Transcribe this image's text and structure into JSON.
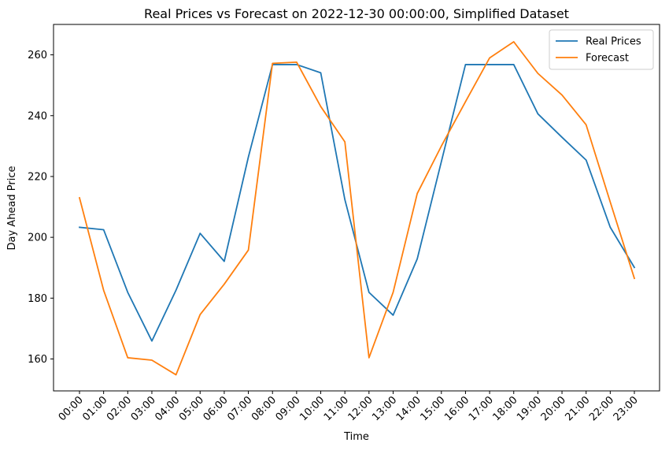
{
  "chart_data": {
    "type": "line",
    "title": "Real Prices vs Forecast on 2022-12-30 00:00:00, Simplified Dataset",
    "xlabel": "Time",
    "ylabel": "Day Ahead Price",
    "categories": [
      "00:00",
      "01:00",
      "02:00",
      "03:00",
      "04:00",
      "05:00",
      "06:00",
      "07:00",
      "08:00",
      "09:00",
      "10:00",
      "11:00",
      "12:00",
      "13:00",
      "14:00",
      "15:00",
      "16:00",
      "17:00",
      "18:00",
      "19:00",
      "20:00",
      "21:00",
      "22:00",
      "23:00"
    ],
    "ylim": [
      149.5,
      270
    ],
    "yticks": [
      160,
      180,
      200,
      220,
      240,
      260
    ],
    "grid": false,
    "legend_position": "top-right",
    "series": [
      {
        "name": "Real Prices",
        "color": "#1f77b4",
        "values": [
          203.3,
          202.5,
          181.9,
          165.9,
          182.6,
          201.3,
          192.1,
          226.4,
          256.8,
          256.8,
          254.1,
          212.4,
          181.9,
          174.4,
          192.9,
          224.9,
          256.8,
          256.8,
          256.8,
          240.6,
          232.9,
          225.4,
          203.3,
          190.1
        ]
      },
      {
        "name": "Forecast",
        "color": "#ff7f0e",
        "values": [
          213.0,
          182.6,
          160.4,
          159.6,
          154.8,
          174.6,
          184.6,
          195.8,
          257.2,
          257.6,
          243.0,
          231.4,
          160.4,
          181.9,
          214.4,
          230.0,
          244.6,
          259.0,
          264.3,
          253.9,
          246.8,
          237.0,
          211.6,
          186.5
        ]
      }
    ]
  }
}
